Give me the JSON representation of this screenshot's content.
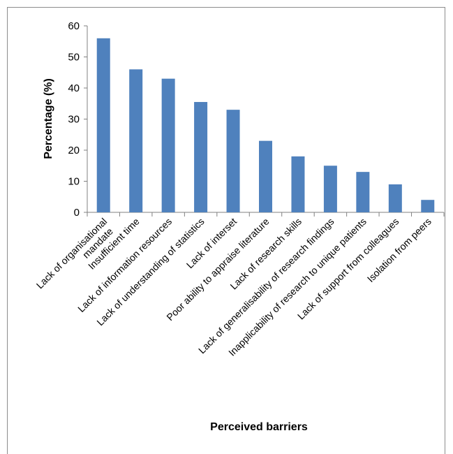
{
  "chart_data": {
    "type": "bar",
    "xlabel": "Perceived barriers",
    "ylabel": "Percentage (%)",
    "ylim": [
      0,
      60
    ],
    "yticks": [
      0,
      10,
      20,
      30,
      40,
      50,
      60
    ],
    "grid": false,
    "bar_color": "#4f81bd",
    "categories": [
      [
        "Lack of organisational",
        "mandate"
      ],
      [
        "Insufficient time"
      ],
      [
        "Lack of information resources"
      ],
      [
        "Lack of understanding of statistics"
      ],
      [
        "Lack of interset"
      ],
      [
        "Poor ability to appraise literature"
      ],
      [
        "Lack of research skills"
      ],
      [
        "Lack of generalisability of research findings"
      ],
      [
        "Inapplicability of research to unique patients"
      ],
      [
        "Lack of support from colleagues"
      ],
      [
        "Isolation from peers"
      ]
    ],
    "values": [
      56,
      46,
      43,
      35.5,
      33,
      23,
      18,
      15,
      13,
      9,
      4
    ]
  }
}
